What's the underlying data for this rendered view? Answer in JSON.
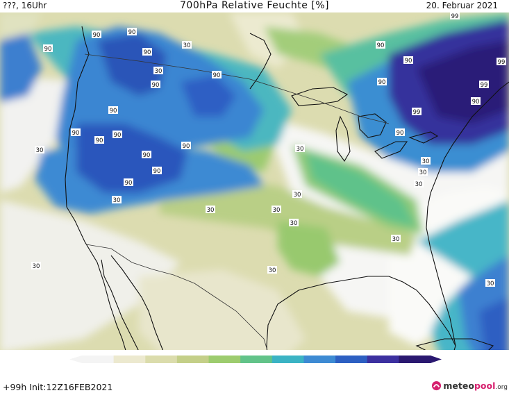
{
  "header": {
    "left_text": "???, 16Uhr",
    "title": "700hPa Relative Feuchte [%]",
    "date": "20. Februar 2021"
  },
  "footer": {
    "run_info": "+99h  Init:12Z16FEB2021",
    "brand_main": "meteo",
    "brand_accent": "pool",
    "brand_suffix": ".org",
    "brand_icon": "meteopool-logo-icon"
  },
  "colorbar": {
    "ticks": [
      "5",
      "15",
      "25",
      "35",
      "45",
      "55",
      "65",
      "75",
      "85",
      "95",
      "100"
    ],
    "colors": [
      "#f4f4f4",
      "#ece9cf",
      "#dbdcac",
      "#c4cf88",
      "#9dcc6e",
      "#62c389",
      "#3bb3c4",
      "#3d8ad3",
      "#2d5fc2",
      "#3c30a0",
      "#2a1870"
    ]
  },
  "contour_labels": [
    {
      "text": "90"
    },
    {
      "text": "90"
    },
    {
      "text": "90"
    },
    {
      "text": "90"
    },
    {
      "text": "30"
    },
    {
      "text": "30"
    },
    {
      "text": "90"
    },
    {
      "text": "90"
    },
    {
      "text": "90"
    },
    {
      "text": "90"
    },
    {
      "text": "90"
    },
    {
      "text": "90"
    },
    {
      "text": "90"
    },
    {
      "text": "30"
    },
    {
      "text": "90"
    },
    {
      "text": "90"
    },
    {
      "text": "90"
    },
    {
      "text": "30"
    },
    {
      "text": "30"
    },
    {
      "text": "30"
    },
    {
      "text": "30"
    },
    {
      "text": "30"
    },
    {
      "text": "30"
    },
    {
      "text": "30"
    },
    {
      "text": "30"
    },
    {
      "text": "30"
    },
    {
      "text": "30"
    },
    {
      "text": "90"
    },
    {
      "text": "99"
    },
    {
      "text": "99"
    },
    {
      "text": "99"
    },
    {
      "text": "90"
    },
    {
      "text": "90"
    },
    {
      "text": "99"
    },
    {
      "text": "90"
    },
    {
      "text": "90"
    },
    {
      "text": "30"
    },
    {
      "text": "30"
    },
    {
      "text": "30"
    },
    {
      "text": "90"
    }
  ]
}
